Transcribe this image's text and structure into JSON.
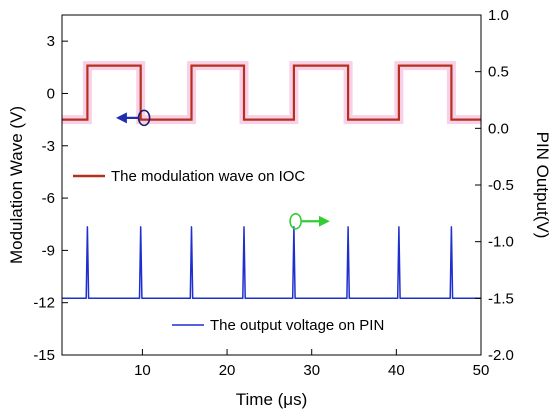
{
  "chart_data": {
    "type": "line",
    "xlabel": "Time (μs)",
    "ylabel_left": "Modulation Wave (V)",
    "ylabel_right": "PIN Output(V)",
    "xlim": [
      0.5,
      50
    ],
    "ylim_left": [
      -15,
      4.5
    ],
    "ylim_right": [
      -2.0,
      1.0
    ],
    "x_ticks": [
      10,
      20,
      30,
      40,
      50
    ],
    "x_tick_labels": [
      "10",
      "20",
      "30",
      "40",
      "50"
    ],
    "y_left_ticks": [
      3,
      0,
      -3,
      -6,
      -9,
      -12,
      -15
    ],
    "y_left_tick_labels": [
      "3",
      "0",
      "-3",
      "-6",
      "-9",
      "-12",
      "-15"
    ],
    "y_right_ticks": [
      1.0,
      0.5,
      0.0,
      -0.5,
      -1.0,
      -1.5,
      -2.0
    ],
    "y_right_tick_labels": [
      "1.0",
      "0.5",
      "0.0",
      "-0.5",
      "-1.0",
      "-1.5",
      "-2.0"
    ],
    "grid": false,
    "series": [
      {
        "name": "The modulation wave on IOC",
        "axis": "left",
        "color": "#b5311e",
        "glow_color": "#f4b8dc",
        "kind": "square_wave",
        "low": -1.5,
        "high": 1.6,
        "edges": [
          [
            3.5,
            9.8
          ],
          [
            15.8,
            22.0
          ],
          [
            27.9,
            34.3
          ],
          [
            40.3,
            46.5
          ]
        ]
      },
      {
        "name": "The output voltage on PIN",
        "axis": "right",
        "color": "#1f2fcf",
        "kind": "spikes",
        "baseline": -1.5,
        "peak": -0.87,
        "spike_x": [
          3.5,
          9.8,
          15.8,
          22.0,
          27.9,
          34.3,
          40.3,
          46.5
        ]
      }
    ],
    "annotations": [
      {
        "marker": "ellipse",
        "color": "#1a1a6e",
        "x": 10.2,
        "y_left": -1.4,
        "arrow": "left",
        "arrow_color": "#1f2fb0"
      },
      {
        "marker": "ellipse",
        "color": "#33cc33",
        "x": 28.1,
        "y_right": -0.82,
        "arrow": "right",
        "arrow_color": "#33cc33"
      }
    ],
    "legend": [
      {
        "label": "The modulation wave on IOC",
        "series": 0,
        "placement": "upper-left"
      },
      {
        "label": "The output voltage on PIN",
        "series": 1,
        "placement": "bottom-center"
      }
    ]
  }
}
